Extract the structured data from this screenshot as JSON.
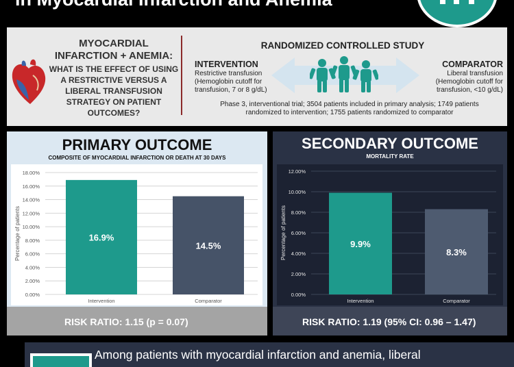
{
  "header": {
    "title": "in Myocardial Infarction and Anemia"
  },
  "question": {
    "heading": "MYOCARDIAL INFARCTION + ANEMIA:",
    "body": "WHAT IS THE EFFECT OF USING A RESTRICTIVE VERSUS A LIBERAL TRANSFUSION STRATEGY ON PATIENT OUTCOMES?"
  },
  "study": {
    "title": "RANDOMIZED CONTROLLED STUDY",
    "intervention": {
      "heading": "INTERVENTION",
      "line1": "Restrictive transfusion",
      "line2": "(Hemoglobin cutoff for transfusion, 7 or 8 g/dL)"
    },
    "comparator": {
      "heading": "COMPARATOR",
      "line1": "Liberal transfusion",
      "line2": "(Hemoglobin cutoff for transfusion, <10 g/dL)"
    },
    "details": "Phase 3, interventional trial; 3504 patients included in primary analysis; 1749 patients randomized to intervention; 1755 patients randomized to comparator"
  },
  "colors": {
    "teal": "#1e9a8c",
    "slate": "#465368",
    "slate_light": "#4e5b70",
    "heart_red": "#c8282a",
    "heart_blue": "#3a63a8"
  },
  "chart_data": [
    {
      "type": "bar",
      "title": "PRIMARY OUTCOME",
      "subtitle": "COMPOSITE OF MYOCARDIAL INFARCTION OR DEATH AT 30 DAYS",
      "categories": [
        "Intervention",
        "Comparator"
      ],
      "values": [
        16.9,
        14.5
      ],
      "value_labels": [
        "16.9%",
        "14.5%"
      ],
      "ylabel": "Percentage of patients",
      "ylim": [
        0,
        18
      ],
      "yticks": [
        0,
        2,
        4,
        6,
        8,
        10,
        12,
        14,
        16,
        18
      ],
      "ytick_labels": [
        "0.00%",
        "2.00%",
        "4.00%",
        "6.00%",
        "8.00%",
        "10.00%",
        "12.00%",
        "14.00%",
        "16.00%",
        "18.00%"
      ],
      "grid": true,
      "footer": "RISK RATIO: 1.15 (p = 0.07)"
    },
    {
      "type": "bar",
      "title": "SECONDARY OUTCOME",
      "subtitle": "MORTALITY RATE",
      "categories": [
        "Intervention",
        "Comparator"
      ],
      "values": [
        9.9,
        8.3
      ],
      "value_labels": [
        "9.9%",
        "8.3%"
      ],
      "ylabel": "Percentage of patients",
      "ylim": [
        0,
        12
      ],
      "yticks": [
        0,
        2,
        4,
        6,
        8,
        10,
        12
      ],
      "ytick_labels": [
        "0.00%",
        "2.00%",
        "4.00%",
        "6.00%",
        "8.00%",
        "10.00%",
        "12.00%"
      ],
      "grid": true,
      "footer": "RISK RATIO: 1.19 (95% CI: 0.96 – 1.47)"
    }
  ],
  "conclusion": {
    "text": "Among patients with myocardial infarction and anemia, liberal"
  }
}
